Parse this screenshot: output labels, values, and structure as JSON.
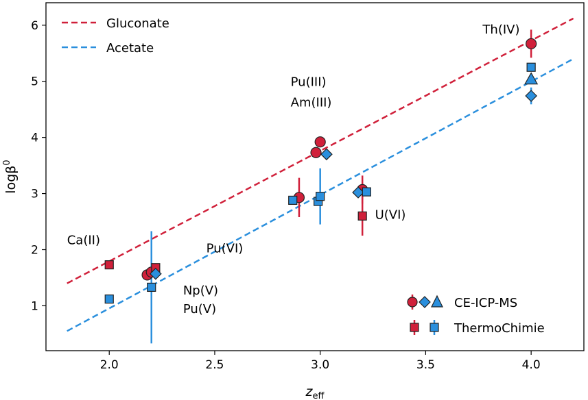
{
  "chart_data": {
    "type": "scatter",
    "xlabel": "z",
    "xlabel_sub": "eff",
    "ylabel": "logβ",
    "ylabel_sup": "0",
    "xlim": [
      1.7,
      4.25
    ],
    "ylim": [
      0.2,
      6.4
    ],
    "xticks": [
      "2.0",
      "2.5",
      "3.0",
      "3.5",
      "4.0"
    ],
    "yticks": [
      "1",
      "2",
      "3",
      "4",
      "5",
      "6"
    ],
    "colors": {
      "gluconate": "#d0203a",
      "acetate": "#2a8fdd"
    },
    "fit_lines": [
      {
        "name": "Gluconate",
        "color": "#d0203a",
        "x": [
          1.8,
          4.2
        ],
        "y": [
          1.4,
          6.12
        ]
      },
      {
        "name": "Acetate",
        "color": "#2a8fdd",
        "x": [
          1.8,
          4.2
        ],
        "y": [
          0.55,
          5.4
        ]
      }
    ],
    "points": [
      {
        "ligand": "gluconate",
        "source": "CE-ICP-MS",
        "marker": "circle",
        "x": 2.18,
        "y": 1.55,
        "err": 0
      },
      {
        "ligand": "gluconate",
        "source": "CE-ICP-MS",
        "marker": "circle",
        "x": 2.2,
        "y": 1.6,
        "err": 0
      },
      {
        "ligand": "gluconate",
        "source": "CE-ICP-MS",
        "marker": "circle",
        "x": 2.9,
        "y": 2.93,
        "err": 0.35
      },
      {
        "ligand": "gluconate",
        "source": "CE-ICP-MS",
        "marker": "circle",
        "x": 2.98,
        "y": 3.73,
        "err": 0
      },
      {
        "ligand": "gluconate",
        "source": "CE-ICP-MS",
        "marker": "circle",
        "x": 3.0,
        "y": 3.92,
        "err": 0
      },
      {
        "ligand": "gluconate",
        "source": "CE-ICP-MS",
        "marker": "circle",
        "x": 3.2,
        "y": 3.07,
        "err": 0.25
      },
      {
        "ligand": "gluconate",
        "source": "CE-ICP-MS",
        "marker": "circle",
        "x": 4.0,
        "y": 5.67,
        "err": 0.25
      },
      {
        "ligand": "gluconate",
        "source": "ThermoChimie",
        "marker": "square",
        "x": 2.0,
        "y": 1.73,
        "err": 0
      },
      {
        "ligand": "gluconate",
        "source": "ThermoChimie",
        "marker": "square",
        "x": 2.22,
        "y": 1.68,
        "err": 0
      },
      {
        "ligand": "gluconate",
        "source": "ThermoChimie",
        "marker": "square",
        "x": 3.2,
        "y": 2.6,
        "err": 0.35
      },
      {
        "ligand": "acetate",
        "source": "CE-ICP-MS",
        "marker": "diamond",
        "x": 2.22,
        "y": 1.57,
        "err": 0
      },
      {
        "ligand": "acetate",
        "source": "CE-ICP-MS",
        "marker": "diamond",
        "x": 3.03,
        "y": 3.7,
        "err": 0
      },
      {
        "ligand": "acetate",
        "source": "CE-ICP-MS",
        "marker": "diamond",
        "x": 3.18,
        "y": 3.02,
        "err": 0
      },
      {
        "ligand": "acetate",
        "source": "CE-ICP-MS",
        "marker": "diamond",
        "x": 4.0,
        "y": 4.74,
        "err": 0.15
      },
      {
        "ligand": "acetate",
        "source": "CE-ICP-MS",
        "marker": "triangle",
        "x": 4.0,
        "y": 5.04,
        "err": 0
      },
      {
        "ligand": "acetate",
        "source": "ThermoChimie",
        "marker": "square",
        "x": 2.0,
        "y": 1.12,
        "err": 0
      },
      {
        "ligand": "acetate",
        "source": "ThermoChimie",
        "marker": "square",
        "x": 2.2,
        "y": 1.33,
        "err": 1.0
      },
      {
        "ligand": "acetate",
        "source": "ThermoChimie",
        "marker": "square",
        "x": 2.87,
        "y": 2.88,
        "err": 0
      },
      {
        "ligand": "acetate",
        "source": "ThermoChimie",
        "marker": "square",
        "x": 2.99,
        "y": 2.86,
        "err": 0
      },
      {
        "ligand": "acetate",
        "source": "ThermoChimie",
        "marker": "square",
        "x": 3.0,
        "y": 2.95,
        "err": 0.5
      },
      {
        "ligand": "acetate",
        "source": "ThermoChimie",
        "marker": "square",
        "x": 3.22,
        "y": 3.03,
        "err": 0
      },
      {
        "ligand": "acetate",
        "source": "ThermoChimie",
        "marker": "square",
        "x": 4.0,
        "y": 5.25,
        "err": 0
      }
    ],
    "annotations": [
      {
        "text": "Th(IV)",
        "x": 3.77,
        "y": 5.85
      },
      {
        "text": "Pu(III)",
        "x": 2.86,
        "y": 4.92
      },
      {
        "text": "Am(III)",
        "x": 2.86,
        "y": 4.55
      },
      {
        "text": "U(VI)",
        "x": 3.26,
        "y": 2.55
      },
      {
        "text": "Pu(VI)",
        "x": 2.46,
        "y": 1.95
      },
      {
        "text": "Ca(II)",
        "x": 1.8,
        "y": 2.1
      },
      {
        "text": "Np(V)",
        "x": 2.35,
        "y": 1.2
      },
      {
        "text": "Pu(V)",
        "x": 2.35,
        "y": 0.87
      }
    ],
    "legend_top": [
      {
        "label": "Gluconate",
        "color": "#d0203a"
      },
      {
        "label": "Acetate",
        "color": "#2a8fdd"
      }
    ],
    "legend_bottom": [
      {
        "label": "CE-ICP-MS"
      },
      {
        "label": "ThermoChimie"
      }
    ],
    "legend_top_position": "top-left",
    "legend_bottom_position": "bottom-right",
    "grid": false
  }
}
